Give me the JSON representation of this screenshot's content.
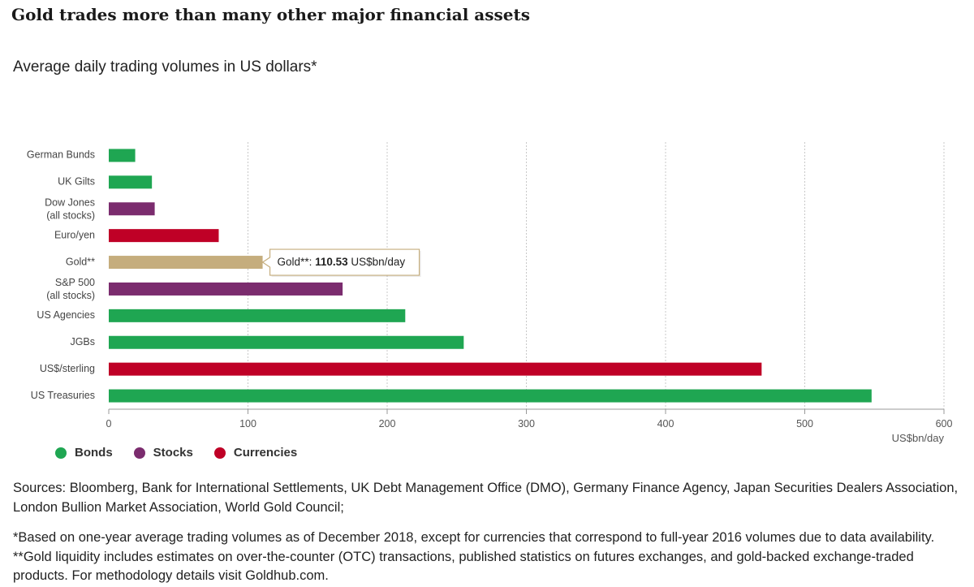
{
  "title": "Gold trades more than many other major financial assets",
  "subtitle": "Average daily trading volumes in US dollars*",
  "colors": {
    "bonds": "#1fa652",
    "stocks": "#7b2c6e",
    "currencies": "#bf0026",
    "gold": "#c5ad7d",
    "grid": "#c8c8c8",
    "axis": "#999999"
  },
  "legend": [
    {
      "label": "Bonds",
      "color": "#1fa652"
    },
    {
      "label": "Stocks",
      "color": "#7b2c6e"
    },
    {
      "label": "Currencies",
      "color": "#bf0026"
    }
  ],
  "tooltip": {
    "label": "Gold**",
    "value": "110.53",
    "unit": "US$bn/day"
  },
  "chart_data": {
    "type": "bar",
    "orientation": "horizontal",
    "categories": [
      [
        "German Bunds"
      ],
      [
        "UK Gilts"
      ],
      [
        "Dow Jones",
        "(all stocks)"
      ],
      [
        "Euro/yen"
      ],
      [
        "Gold**"
      ],
      [
        "S&P 500",
        "(all stocks)"
      ],
      [
        "US Agencies"
      ],
      [
        "JGBs"
      ],
      [
        "US$/sterling"
      ],
      [
        "US Treasuries"
      ]
    ],
    "values": [
      19,
      31,
      33,
      79,
      110.53,
      168,
      213,
      255,
      469,
      548
    ],
    "groups": [
      "Bonds",
      "Bonds",
      "Stocks",
      "Currencies",
      "Gold",
      "Stocks",
      "Bonds",
      "Bonds",
      "Currencies",
      "Bonds"
    ],
    "xlim": [
      0,
      600
    ],
    "xticks": [
      0,
      100,
      200,
      300,
      400,
      500,
      600
    ],
    "xlabel": "US$bn/day",
    "grid": true,
    "legend_position": "bottom-left"
  },
  "notes": {
    "sources": "Sources: Bloomberg, Bank for International Settlements, UK Debt Management Office (DMO), Germany Finance Agency, Japan Securities Dealers Association, London Bullion Market Association, World Gold Council;",
    "footnote1": "*Based on one-year average trading volumes as of December 2018, except for currencies that correspond to full-year 2016 volumes due to data availability.",
    "footnote2": "**Gold liquidity includes estimates on over-the-counter (OTC) transactions, published statistics on futures exchanges, and gold-backed exchange-traded products. For methodology details visit Goldhub.com."
  }
}
